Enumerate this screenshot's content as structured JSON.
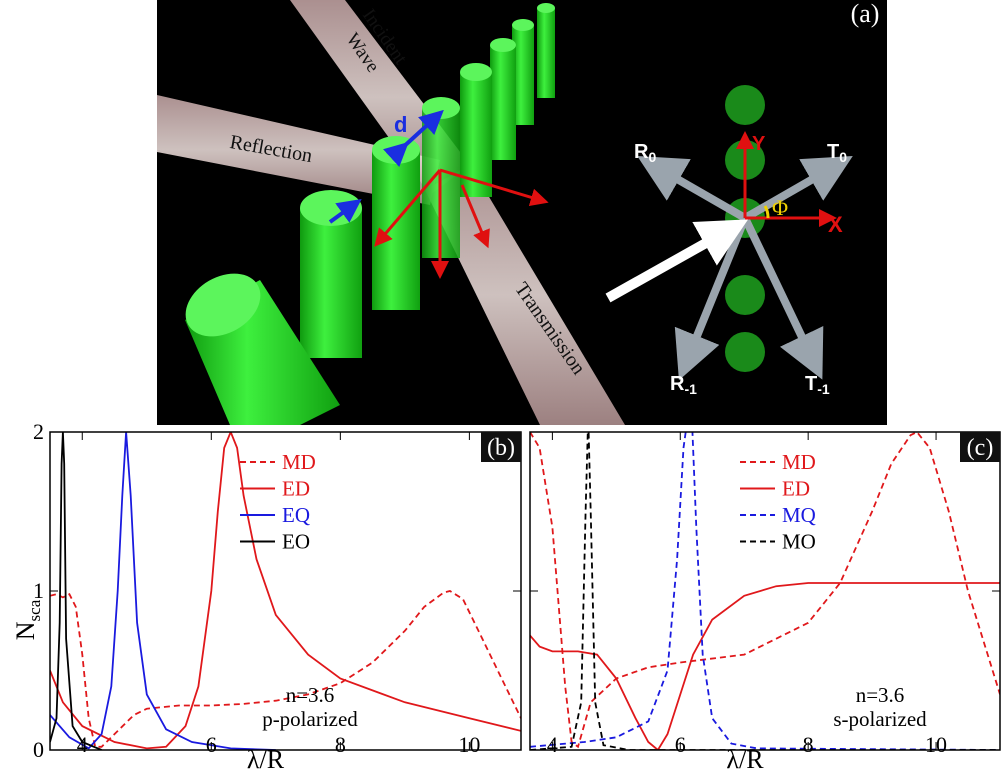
{
  "panel_a": {
    "label": "(a)",
    "incident": [
      "Incident",
      "Wave"
    ],
    "reflection": "Reflection",
    "transmission": "Transmission",
    "d": "d",
    "orders": [
      {
        "text": "R",
        "sub": "0"
      },
      {
        "text": "T",
        "sub": "0"
      },
      {
        "text": "R",
        "sub": "-1"
      },
      {
        "text": "T",
        "sub": "-1"
      }
    ],
    "axes": [
      "Y",
      "X"
    ],
    "phi": "Φ"
  },
  "chart_data": [
    {
      "type": "line",
      "label": "(b)",
      "xlabel": "λ/R",
      "ylabel": "N",
      "ylabel_sub": "sca",
      "annotations": [
        "n=3.6",
        "p-polarized"
      ],
      "xlim": [
        3.5,
        10.8
      ],
      "ylim": [
        0,
        2
      ],
      "xticks": [
        4,
        6,
        8,
        10
      ],
      "yticks": [
        0,
        1,
        2
      ],
      "series": [
        {
          "name": "MD",
          "color": "#e0181b",
          "dash": true,
          "x": [
            3.5,
            3.6,
            3.7,
            3.8,
            3.9,
            4.0,
            4.1,
            4.2,
            4.3,
            4.5,
            4.8,
            5.0,
            5.5,
            6,
            6.5,
            7,
            7.5,
            8,
            8.5,
            9,
            9.3,
            9.6,
            9.7,
            9.9,
            10.2,
            10.5,
            10.8
          ],
          "values": [
            0.97,
            0.98,
            0.96,
            0.98,
            0.9,
            0.6,
            0.2,
            0.02,
            0.02,
            0.1,
            0.22,
            0.26,
            0.28,
            0.28,
            0.29,
            0.31,
            0.35,
            0.42,
            0.55,
            0.75,
            0.9,
            0.99,
            1.0,
            0.95,
            0.7,
            0.45,
            0.2
          ]
        },
        {
          "name": "ED",
          "color": "#e0181b",
          "dash": false,
          "x": [
            3.5,
            3.7,
            4.0,
            4.5,
            5.0,
            5.3,
            5.6,
            5.8,
            6.0,
            6.1,
            6.2,
            6.3,
            6.4,
            6.5,
            6.7,
            7.0,
            7.5,
            8,
            9,
            10,
            10.8
          ],
          "values": [
            0.5,
            0.3,
            0.15,
            0.05,
            0.01,
            0.02,
            0.15,
            0.4,
            1.0,
            1.5,
            1.9,
            2.0,
            1.9,
            1.6,
            1.2,
            0.85,
            0.6,
            0.45,
            0.3,
            0.2,
            0.12
          ]
        },
        {
          "name": "EQ",
          "color": "#1a1adf",
          "dash": false,
          "x": [
            3.5,
            3.8,
            4.1,
            4.3,
            4.45,
            4.55,
            4.62,
            4.68,
            4.75,
            4.85,
            5.0,
            5.3,
            5.7,
            6.3,
            7.0
          ],
          "values": [
            0.22,
            0.08,
            0.01,
            0.1,
            0.4,
            1.0,
            1.6,
            2.0,
            1.6,
            0.8,
            0.35,
            0.13,
            0.05,
            0.01,
            0
          ]
        },
        {
          "name": "EO",
          "color": "#000000",
          "dash": false,
          "x": [
            3.5,
            3.6,
            3.65,
            3.68,
            3.7,
            3.72,
            3.75,
            3.85,
            4.0,
            4.3
          ],
          "values": [
            0.05,
            0.2,
            0.8,
            1.8,
            2.0,
            1.8,
            0.7,
            0.15,
            0.05,
            0
          ]
        }
      ]
    },
    {
      "type": "line",
      "label": "(c)",
      "xlabel": "λ/R",
      "annotations": [
        "n=3.6",
        "s-polarized"
      ],
      "xlim": [
        3.65,
        11
      ],
      "ylim": [
        0,
        2
      ],
      "xticks": [
        4,
        6,
        8,
        10
      ],
      "yticks": [
        0,
        1,
        2
      ],
      "series": [
        {
          "name": "MD",
          "color": "#e0181b",
          "dash": true,
          "x": [
            3.65,
            3.8,
            4.0,
            4.1,
            4.2,
            4.3,
            4.4,
            4.6,
            5.0,
            5.5,
            6,
            7,
            8,
            8.5,
            9,
            9.3,
            9.6,
            9.7,
            9.9,
            10.2,
            10.5,
            11
          ],
          "values": [
            2.0,
            1.9,
            1.4,
            0.9,
            0.4,
            0.05,
            0.02,
            0.3,
            0.45,
            0.52,
            0.55,
            0.6,
            0.8,
            1.05,
            1.5,
            1.8,
            1.98,
            2.0,
            1.9,
            1.5,
            1.0,
            0.35
          ]
        },
        {
          "name": "ED",
          "color": "#e0181b",
          "dash": false,
          "x": [
            3.65,
            3.8,
            4.0,
            4.4,
            4.7,
            5.0,
            5.3,
            5.5,
            5.65,
            5.8,
            6.0,
            6.2,
            6.5,
            7,
            7.5,
            8,
            9,
            10,
            11
          ],
          "values": [
            0.72,
            0.65,
            0.62,
            0.62,
            0.6,
            0.45,
            0.2,
            0.05,
            0.0,
            0.1,
            0.35,
            0.6,
            0.82,
            0.97,
            1.03,
            1.05,
            1.05,
            1.05,
            1.05
          ]
        },
        {
          "name": "MQ",
          "color": "#1a1adf",
          "dash": true,
          "x": [
            3.65,
            4.5,
            5.0,
            5.5,
            5.8,
            5.95,
            6.05,
            6.12,
            6.18,
            6.25,
            6.35,
            6.5,
            6.8,
            7.2,
            11
          ],
          "values": [
            0.02,
            0.05,
            0.08,
            0.18,
            0.5,
            1.2,
            1.9,
            2.1,
            2.1,
            1.4,
            0.6,
            0.2,
            0.04,
            0.01,
            0
          ]
        },
        {
          "name": "MO",
          "color": "#000000",
          "dash": true,
          "x": [
            3.65,
            4.3,
            4.45,
            4.52,
            4.56,
            4.6,
            4.67,
            4.8,
            5.2,
            11
          ],
          "values": [
            0,
            0.02,
            0.3,
            1.5,
            2.1,
            1.5,
            0.3,
            0.03,
            0,
            0
          ]
        }
      ]
    }
  ]
}
